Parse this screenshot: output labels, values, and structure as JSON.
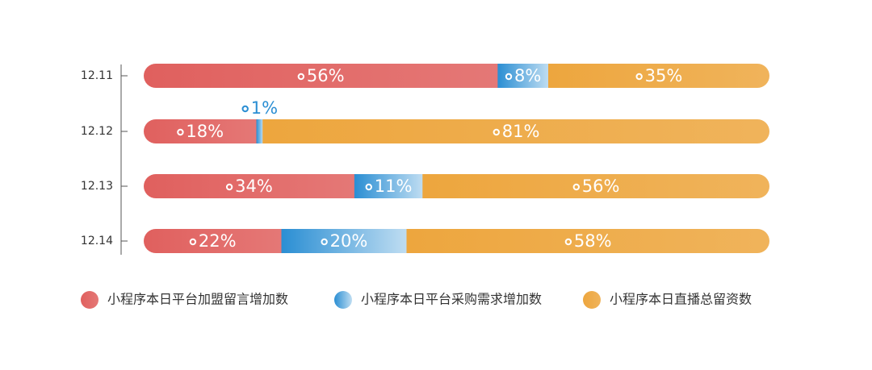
{
  "chart_data": {
    "type": "stacked-bar-horizontal",
    "categories": [
      "12.11",
      "12.12",
      "12.13",
      "12.14"
    ],
    "series": [
      {
        "name": "小程序本日平台加盟留言增加数",
        "color": "#e0605e",
        "values": [
          56,
          18,
          34,
          22
        ],
        "value_labels": [
          "56%",
          "18%",
          "34%",
          "22%"
        ]
      },
      {
        "name": "小程序本日平台采购需求增加数",
        "color": "#2a8ed3",
        "values": [
          8,
          1,
          11,
          20
        ],
        "value_labels": [
          "8%",
          "1%",
          "11%",
          "20%"
        ]
      },
      {
        "name": "小程序本日直播总留资数",
        "color": "#eda63e",
        "values": [
          35,
          81,
          56,
          58
        ],
        "value_labels": [
          "35%",
          "81%",
          "56%",
          "58%"
        ]
      }
    ]
  }
}
